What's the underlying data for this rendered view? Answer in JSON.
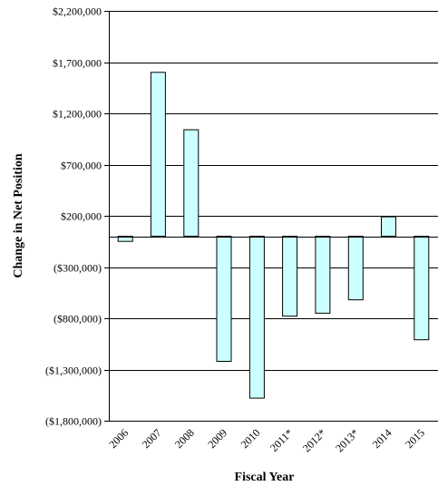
{
  "chart_data": {
    "type": "bar",
    "xlabel": "Fiscal Year",
    "ylabel": "Change in Net Position",
    "categories": [
      "2006",
      "2007",
      "2008",
      "2009",
      "2010",
      "2011*",
      "2012*",
      "2013*",
      "2014",
      "2015"
    ],
    "values": [
      -50000,
      1600000,
      1040000,
      -1220000,
      -1580000,
      -780000,
      -750000,
      -620000,
      190000,
      -1010000
    ],
    "ylim": [
      -1800000,
      2200000
    ],
    "yticks": [
      2200000,
      1700000,
      1200000,
      700000,
      200000,
      -300000,
      -800000,
      -1300000,
      -1800000
    ],
    "ytick_labels": [
      "$2,200,000",
      "$1,700,000",
      "$1,200,000",
      "$700,000",
      "$200,000",
      "($300,000)",
      "($800,000)",
      "($1,300,000)",
      "($1,800,000)"
    ],
    "grid": true,
    "legend": "none",
    "colors": {
      "bar_fill": "#ccffff",
      "bar_stroke": "#000000",
      "grid": "#000000"
    }
  }
}
